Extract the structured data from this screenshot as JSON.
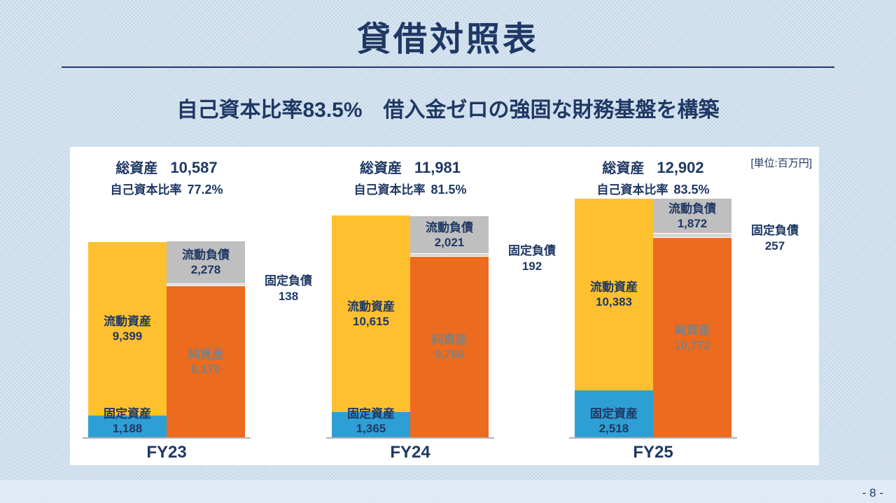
{
  "page": {
    "title": "貸借対照表",
    "subtitle": "自己資本比率83.5%　借入金ゼロの強固な財務基盤を構築",
    "unit_label": "[単位:百万円]",
    "page_number": "- 8 -"
  },
  "labels": {
    "total_assets": "総資産",
    "equity_ratio": "自己資本比率",
    "current_assets": "流動資産",
    "fixed_assets": "固定資産",
    "current_liabilities": "流動負債",
    "fixed_liabilities": "固定負債",
    "net_assets": "純資産"
  },
  "colors": {
    "navy": "#1F3864",
    "current_assets": "#FFC030",
    "fixed_assets": "#2E9FD4",
    "current_liabilities": "#BFBFBF",
    "fixed_liabilities": "#D6D6D6",
    "net_assets": "#ED6B1E",
    "net_assets_label": "#808080",
    "background": "#CFDFED",
    "panel": "#FFFFFF"
  },
  "chart_data": {
    "type": "bar",
    "title": "貸借対照表",
    "unit": "百万円",
    "categories": [
      "FY23",
      "FY24",
      "FY25"
    ],
    "series": [
      {
        "name": "流動資産",
        "values": [
          9399,
          10615,
          10383
        ]
      },
      {
        "name": "固定資産",
        "values": [
          1188,
          1365,
          2518
        ]
      },
      {
        "name": "流動負債",
        "values": [
          2278,
          2021,
          1872
        ]
      },
      {
        "name": "固定負債",
        "values": [
          138,
          192,
          257
        ]
      },
      {
        "name": "純資産",
        "values": [
          8170,
          9766,
          10772
        ]
      }
    ],
    "totals": {
      "total_assets": [
        10587,
        11981,
        12902
      ],
      "equity_ratio": [
        "77.2%",
        "81.5%",
        "83.5%"
      ]
    },
    "groups": [
      {
        "fy": "FY23",
        "total_assets_value": 10587,
        "total_assets_text": "10,587",
        "equity_ratio_text": "77.2%",
        "current_assets_value": 9399,
        "current_assets_text": "9,399",
        "fixed_assets_value": 1188,
        "fixed_assets_text": "1,188",
        "current_liabilities_value": 2278,
        "current_liabilities_text": "2,278",
        "fixed_liabilities_value": 138,
        "fixed_liabilities_text": "138",
        "net_assets_value": 8170,
        "net_assets_text": "8,170"
      },
      {
        "fy": "FY24",
        "total_assets_value": 11981,
        "total_assets_text": "11,981",
        "equity_ratio_text": "81.5%",
        "current_assets_value": 10615,
        "current_assets_text": "10,615",
        "fixed_assets_value": 1365,
        "fixed_assets_text": "1,365",
        "current_liabilities_value": 2021,
        "current_liabilities_text": "2,021",
        "fixed_liabilities_value": 192,
        "fixed_liabilities_text": "192",
        "net_assets_value": 9766,
        "net_assets_text": "9,766"
      },
      {
        "fy": "FY25",
        "total_assets_value": 12902,
        "total_assets_text": "12,902",
        "equity_ratio_text": "83.5%",
        "current_assets_value": 10383,
        "current_assets_text": "10,383",
        "fixed_assets_value": 2518,
        "fixed_assets_text": "2,518",
        "current_liabilities_value": 1872,
        "current_liabilities_text": "1,872",
        "fixed_liabilities_value": 257,
        "fixed_liabilities_text": "257",
        "net_assets_value": 10772,
        "net_assets_text": "10,772"
      }
    ]
  }
}
